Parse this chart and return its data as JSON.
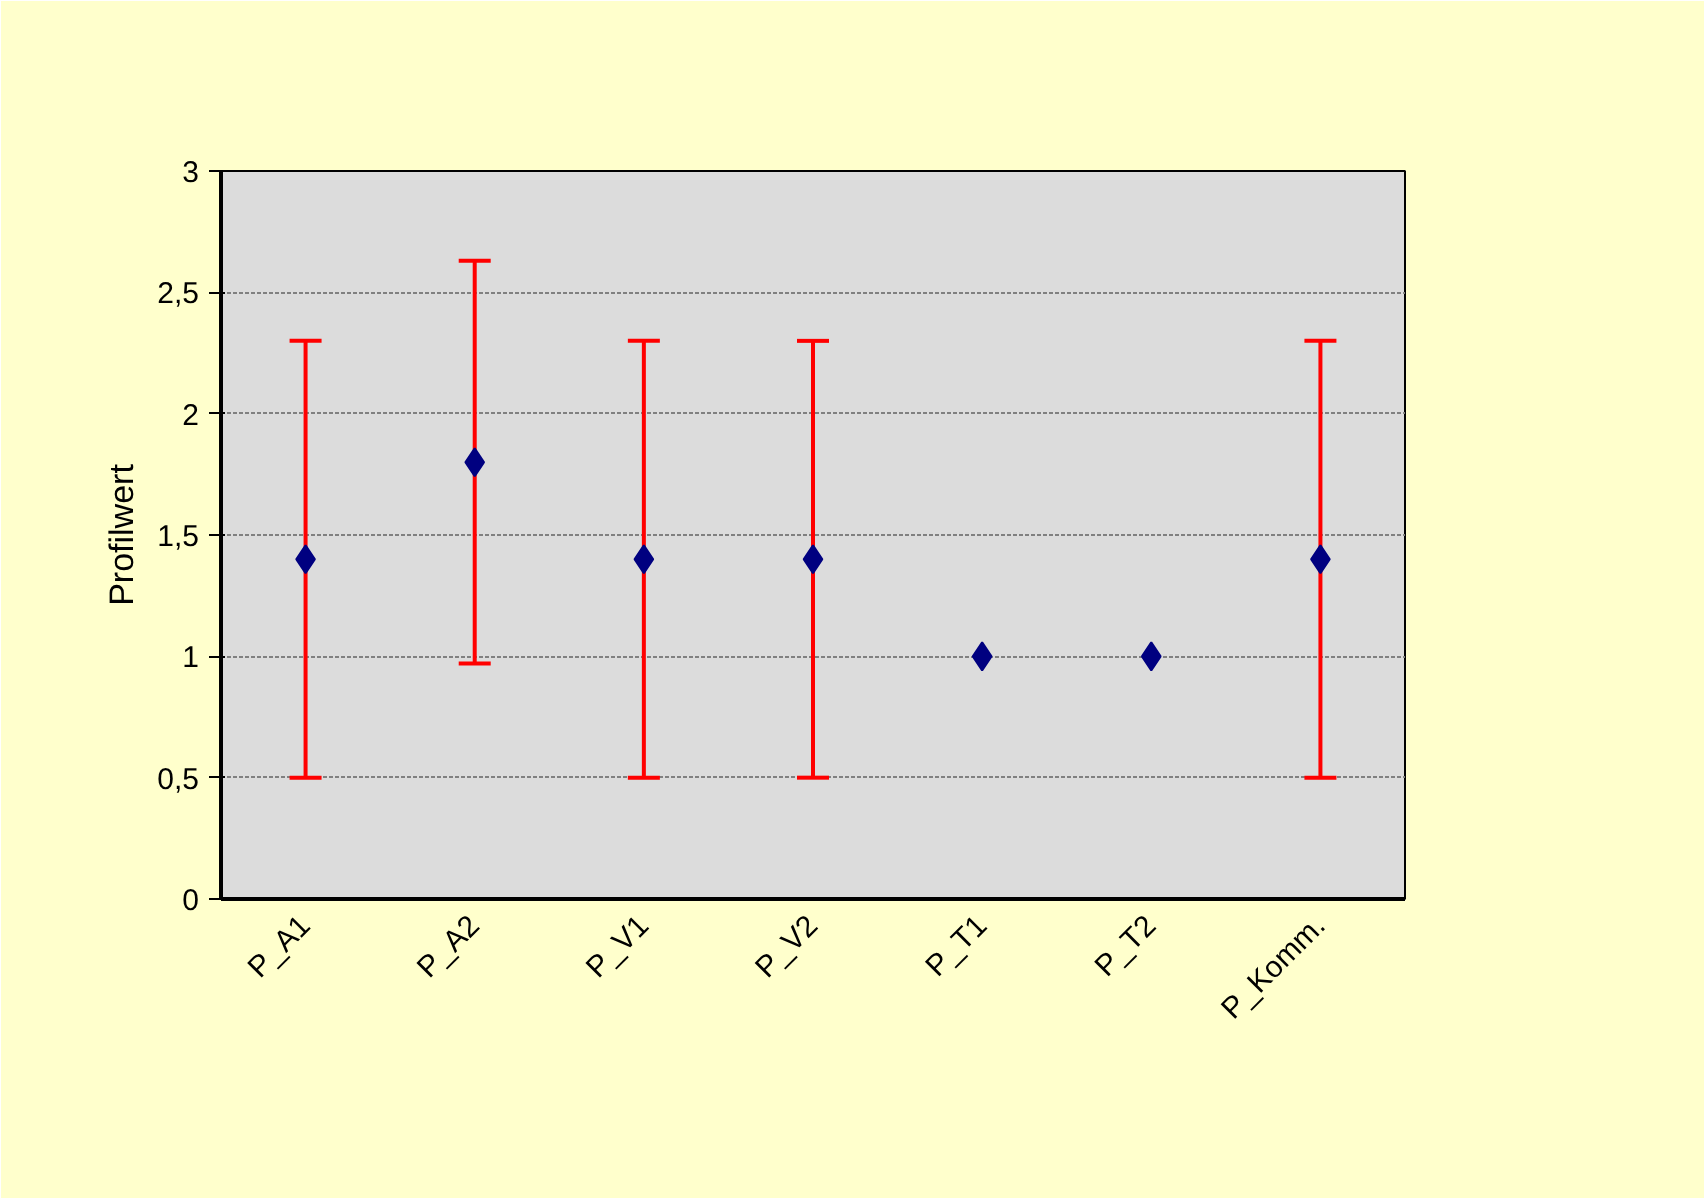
{
  "chart_data": {
    "type": "scatter",
    "ylabel": "Profilwert",
    "categories": [
      "P_A1",
      "P_A2",
      "P_V1",
      "P_V2",
      "P_T1",
      "P_T2",
      "P_Komm."
    ],
    "values": [
      1.4,
      1.8,
      1.4,
      1.4,
      1,
      1,
      1.4
    ],
    "errors": [
      0.9,
      0.83,
      0.9,
      0.9,
      null,
      null,
      0.9
    ],
    "color": "#000080",
    "marker": "diamond",
    "ylim": [
      0,
      3
    ],
    "yticks": [
      0,
      {
        "value": 0.5,
        "label": "0,5"
      },
      1,
      {
        "value": 1.5,
        "label": "1,5"
      },
      2,
      {
        "value": 2.5,
        "label": "2,5"
      },
      3
    ],
    "grid": "y"
  }
}
